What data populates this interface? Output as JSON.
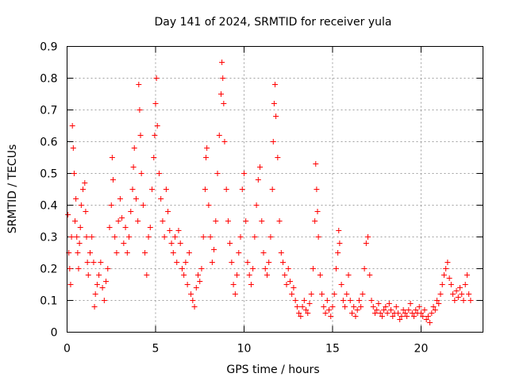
{
  "chart_data": {
    "type": "scatter",
    "title": "Day 141 of 2024, SRMTID for receiver yula",
    "xlabel": "GPS time / hours",
    "ylabel": "SRMTID / TECUs",
    "xlim": [
      0,
      23.5
    ],
    "ylim": [
      0,
      0.9
    ],
    "xticks": [
      0,
      5,
      10,
      15,
      20
    ],
    "yticks": [
      0,
      0.1,
      0.2,
      0.3,
      0.4,
      0.5,
      0.6,
      0.7,
      0.8,
      0.9
    ],
    "grid": true,
    "marker": "+",
    "color": "#ff0000",
    "series": [
      {
        "name": "SRMTID",
        "points": [
          [
            0.05,
            0.37
          ],
          [
            0.1,
            0.25
          ],
          [
            0.15,
            0.2
          ],
          [
            0.2,
            0.15
          ],
          [
            0.25,
            0.3
          ],
          [
            0.3,
            0.65
          ],
          [
            0.35,
            0.58
          ],
          [
            0.4,
            0.5
          ],
          [
            0.45,
            0.35
          ],
          [
            0.5,
            0.42
          ],
          [
            0.55,
            0.3
          ],
          [
            0.6,
            0.25
          ],
          [
            0.65,
            0.2
          ],
          [
            0.7,
            0.28
          ],
          [
            0.75,
            0.33
          ],
          [
            0.8,
            0.4
          ],
          [
            0.9,
            0.45
          ],
          [
            1.0,
            0.47
          ],
          [
            1.05,
            0.38
          ],
          [
            1.1,
            0.3
          ],
          [
            1.15,
            0.22
          ],
          [
            1.2,
            0.18
          ],
          [
            1.3,
            0.25
          ],
          [
            1.4,
            0.3
          ],
          [
            1.5,
            0.22
          ],
          [
            1.55,
            0.08
          ],
          [
            1.6,
            0.12
          ],
          [
            1.7,
            0.15
          ],
          [
            1.8,
            0.18
          ],
          [
            1.9,
            0.22
          ],
          [
            2.0,
            0.14
          ],
          [
            2.1,
            0.1
          ],
          [
            2.2,
            0.16
          ],
          [
            2.3,
            0.2
          ],
          [
            2.4,
            0.33
          ],
          [
            2.5,
            0.4
          ],
          [
            2.55,
            0.55
          ],
          [
            2.6,
            0.48
          ],
          [
            2.7,
            0.3
          ],
          [
            2.8,
            0.25
          ],
          [
            2.9,
            0.35
          ],
          [
            3.0,
            0.42
          ],
          [
            3.1,
            0.36
          ],
          [
            3.2,
            0.28
          ],
          [
            3.3,
            0.33
          ],
          [
            3.4,
            0.25
          ],
          [
            3.5,
            0.3
          ],
          [
            3.6,
            0.38
          ],
          [
            3.7,
            0.45
          ],
          [
            3.75,
            0.52
          ],
          [
            3.8,
            0.58
          ],
          [
            3.9,
            0.42
          ],
          [
            4.0,
            0.35
          ],
          [
            4.05,
            0.78
          ],
          [
            4.1,
            0.7
          ],
          [
            4.15,
            0.62
          ],
          [
            4.2,
            0.5
          ],
          [
            4.3,
            0.4
          ],
          [
            4.4,
            0.25
          ],
          [
            4.5,
            0.18
          ],
          [
            4.6,
            0.3
          ],
          [
            4.7,
            0.33
          ],
          [
            4.8,
            0.45
          ],
          [
            4.9,
            0.55
          ],
          [
            4.95,
            0.62
          ],
          [
            5.0,
            0.72
          ],
          [
            5.05,
            0.8
          ],
          [
            5.1,
            0.65
          ],
          [
            5.2,
            0.5
          ],
          [
            5.3,
            0.42
          ],
          [
            5.4,
            0.35
          ],
          [
            5.5,
            0.3
          ],
          [
            5.6,
            0.45
          ],
          [
            5.7,
            0.38
          ],
          [
            5.8,
            0.32
          ],
          [
            5.9,
            0.28
          ],
          [
            6.0,
            0.25
          ],
          [
            6.1,
            0.3
          ],
          [
            6.2,
            0.22
          ],
          [
            6.3,
            0.32
          ],
          [
            6.4,
            0.28
          ],
          [
            6.5,
            0.2
          ],
          [
            6.6,
            0.18
          ],
          [
            6.7,
            0.22
          ],
          [
            6.8,
            0.15
          ],
          [
            6.9,
            0.25
          ],
          [
            7.0,
            0.12
          ],
          [
            7.1,
            0.1
          ],
          [
            7.2,
            0.08
          ],
          [
            7.3,
            0.14
          ],
          [
            7.4,
            0.18
          ],
          [
            7.5,
            0.16
          ],
          [
            7.6,
            0.2
          ],
          [
            7.7,
            0.3
          ],
          [
            7.8,
            0.45
          ],
          [
            7.85,
            0.55
          ],
          [
            7.9,
            0.58
          ],
          [
            8.0,
            0.4
          ],
          [
            8.1,
            0.3
          ],
          [
            8.2,
            0.22
          ],
          [
            8.3,
            0.26
          ],
          [
            8.4,
            0.35
          ],
          [
            8.5,
            0.5
          ],
          [
            8.6,
            0.62
          ],
          [
            8.7,
            0.75
          ],
          [
            8.75,
            0.85
          ],
          [
            8.8,
            0.8
          ],
          [
            8.85,
            0.72
          ],
          [
            8.9,
            0.6
          ],
          [
            9.0,
            0.45
          ],
          [
            9.1,
            0.35
          ],
          [
            9.2,
            0.28
          ],
          [
            9.3,
            0.22
          ],
          [
            9.4,
            0.15
          ],
          [
            9.5,
            0.12
          ],
          [
            9.6,
            0.18
          ],
          [
            9.7,
            0.25
          ],
          [
            9.8,
            0.3
          ],
          [
            9.9,
            0.45
          ],
          [
            10.0,
            0.5
          ],
          [
            10.1,
            0.35
          ],
          [
            10.2,
            0.22
          ],
          [
            10.3,
            0.18
          ],
          [
            10.4,
            0.15
          ],
          [
            10.5,
            0.2
          ],
          [
            10.6,
            0.3
          ],
          [
            10.7,
            0.4
          ],
          [
            10.8,
            0.48
          ],
          [
            10.9,
            0.52
          ],
          [
            11.0,
            0.35
          ],
          [
            11.1,
            0.25
          ],
          [
            11.2,
            0.2
          ],
          [
            11.3,
            0.18
          ],
          [
            11.4,
            0.22
          ],
          [
            11.5,
            0.3
          ],
          [
            11.6,
            0.45
          ],
          [
            11.65,
            0.6
          ],
          [
            11.7,
            0.72
          ],
          [
            11.75,
            0.78
          ],
          [
            11.8,
            0.68
          ],
          [
            11.9,
            0.55
          ],
          [
            12.0,
            0.35
          ],
          [
            12.1,
            0.25
          ],
          [
            12.2,
            0.22
          ],
          [
            12.3,
            0.18
          ],
          [
            12.4,
            0.15
          ],
          [
            12.5,
            0.2
          ],
          [
            12.6,
            0.16
          ],
          [
            12.7,
            0.12
          ],
          [
            12.8,
            0.14
          ],
          [
            12.9,
            0.1
          ],
          [
            13.0,
            0.08
          ],
          [
            13.1,
            0.06
          ],
          [
            13.2,
            0.05
          ],
          [
            13.3,
            0.08
          ],
          [
            13.4,
            0.1
          ],
          [
            13.5,
            0.07
          ],
          [
            13.6,
            0.06
          ],
          [
            13.7,
            0.09
          ],
          [
            13.8,
            0.12
          ],
          [
            13.9,
            0.2
          ],
          [
            14.0,
            0.35
          ],
          [
            14.05,
            0.53
          ],
          [
            14.1,
            0.45
          ],
          [
            14.15,
            0.38
          ],
          [
            14.2,
            0.3
          ],
          [
            14.3,
            0.18
          ],
          [
            14.4,
            0.12
          ],
          [
            14.5,
            0.08
          ],
          [
            14.6,
            0.06
          ],
          [
            14.7,
            0.1
          ],
          [
            14.8,
            0.07
          ],
          [
            14.9,
            0.05
          ],
          [
            15.0,
            0.08
          ],
          [
            15.1,
            0.12
          ],
          [
            15.2,
            0.2
          ],
          [
            15.3,
            0.25
          ],
          [
            15.35,
            0.32
          ],
          [
            15.4,
            0.28
          ],
          [
            15.5,
            0.15
          ],
          [
            15.6,
            0.1
          ],
          [
            15.7,
            0.08
          ],
          [
            15.8,
            0.12
          ],
          [
            15.9,
            0.18
          ],
          [
            16.0,
            0.1
          ],
          [
            16.1,
            0.06
          ],
          [
            16.2,
            0.08
          ],
          [
            16.3,
            0.05
          ],
          [
            16.4,
            0.07
          ],
          [
            16.5,
            0.1
          ],
          [
            16.6,
            0.08
          ],
          [
            16.7,
            0.12
          ],
          [
            16.8,
            0.2
          ],
          [
            16.9,
            0.28
          ],
          [
            17.0,
            0.3
          ],
          [
            17.1,
            0.18
          ],
          [
            17.2,
            0.1
          ],
          [
            17.3,
            0.08
          ],
          [
            17.4,
            0.06
          ],
          [
            17.5,
            0.07
          ],
          [
            17.6,
            0.09
          ],
          [
            17.7,
            0.06
          ],
          [
            17.8,
            0.05
          ],
          [
            17.9,
            0.07
          ],
          [
            18.0,
            0.08
          ],
          [
            18.1,
            0.06
          ],
          [
            18.2,
            0.09
          ],
          [
            18.3,
            0.07
          ],
          [
            18.4,
            0.05
          ],
          [
            18.5,
            0.06
          ],
          [
            18.6,
            0.08
          ],
          [
            18.7,
            0.06
          ],
          [
            18.8,
            0.04
          ],
          [
            18.9,
            0.05
          ],
          [
            19.0,
            0.07
          ],
          [
            19.1,
            0.06
          ],
          [
            19.2,
            0.05
          ],
          [
            19.3,
            0.07
          ],
          [
            19.4,
            0.09
          ],
          [
            19.5,
            0.06
          ],
          [
            19.6,
            0.05
          ],
          [
            19.7,
            0.07
          ],
          [
            19.8,
            0.06
          ],
          [
            19.9,
            0.08
          ],
          [
            20.0,
            0.06
          ],
          [
            20.1,
            0.05
          ],
          [
            20.2,
            0.07
          ],
          [
            20.3,
            0.04
          ],
          [
            20.4,
            0.05
          ],
          [
            20.5,
            0.03
          ],
          [
            20.6,
            0.06
          ],
          [
            20.7,
            0.08
          ],
          [
            20.8,
            0.07
          ],
          [
            20.9,
            0.1
          ],
          [
            21.0,
            0.09
          ],
          [
            21.1,
            0.12
          ],
          [
            21.2,
            0.15
          ],
          [
            21.3,
            0.18
          ],
          [
            21.4,
            0.2
          ],
          [
            21.5,
            0.22
          ],
          [
            21.6,
            0.17
          ],
          [
            21.7,
            0.15
          ],
          [
            21.8,
            0.12
          ],
          [
            21.9,
            0.1
          ],
          [
            22.0,
            0.13
          ],
          [
            22.1,
            0.11
          ],
          [
            22.2,
            0.14
          ],
          [
            22.3,
            0.12
          ],
          [
            22.4,
            0.1
          ],
          [
            22.5,
            0.15
          ],
          [
            22.6,
            0.18
          ],
          [
            22.7,
            0.12
          ],
          [
            22.8,
            0.1
          ]
        ]
      }
    ]
  }
}
